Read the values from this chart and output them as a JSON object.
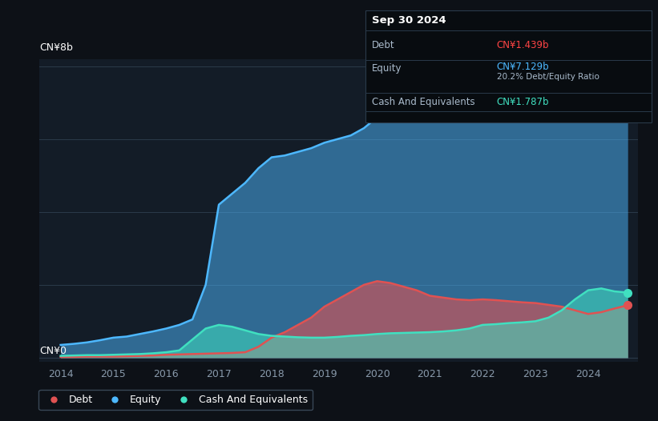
{
  "bg_color": "#0d1117",
  "plot_bg_color": "#131c27",
  "grid_color": "#2a3a4a",
  "title_label": "CN¥8b",
  "zero_label": "CN¥0",
  "xlabel_color": "#8899aa",
  "tooltip_title": "Sep 30 2024",
  "tooltip_debt_label": "Debt",
  "tooltip_debt_value": "CN¥1.439b",
  "tooltip_equity_label": "Equity",
  "tooltip_equity_value": "CN¥7.129b",
  "tooltip_ratio": "20.2% Debt/Equity Ratio",
  "tooltip_cash_label": "Cash And Equivalents",
  "tooltip_cash_value": "CN¥1.787b",
  "debt_color": "#e05252",
  "equity_color": "#4db8ff",
  "cash_color": "#40e0c0",
  "legend_border_color": "#445566",
  "years": [
    2014.0,
    2014.25,
    2014.5,
    2014.75,
    2015.0,
    2015.25,
    2015.5,
    2015.75,
    2016.0,
    2016.25,
    2016.5,
    2016.75,
    2017.0,
    2017.25,
    2017.5,
    2017.75,
    2018.0,
    2018.25,
    2018.5,
    2018.75,
    2019.0,
    2019.25,
    2019.5,
    2019.75,
    2020.0,
    2020.25,
    2020.5,
    2020.75,
    2021.0,
    2021.25,
    2021.5,
    2021.75,
    2022.0,
    2022.25,
    2022.5,
    2022.75,
    2023.0,
    2023.25,
    2023.5,
    2023.75,
    2024.0,
    2024.25,
    2024.5,
    2024.75
  ],
  "equity_values": [
    0.35,
    0.38,
    0.42,
    0.48,
    0.55,
    0.58,
    0.65,
    0.72,
    0.8,
    0.9,
    1.05,
    2.0,
    4.2,
    4.5,
    4.8,
    5.2,
    5.5,
    5.55,
    5.65,
    5.75,
    5.9,
    6.0,
    6.1,
    6.3,
    6.6,
    6.65,
    6.7,
    6.8,
    6.9,
    6.95,
    7.0,
    7.1,
    7.2,
    7.25,
    7.28,
    7.3,
    7.35,
    7.4,
    7.5,
    7.7,
    7.8,
    7.85,
    7.75,
    7.129
  ],
  "debt_values": [
    0.02,
    0.02,
    0.03,
    0.03,
    0.03,
    0.04,
    0.05,
    0.06,
    0.08,
    0.09,
    0.1,
    0.11,
    0.12,
    0.13,
    0.15,
    0.3,
    0.55,
    0.7,
    0.9,
    1.1,
    1.4,
    1.6,
    1.8,
    2.0,
    2.1,
    2.05,
    1.95,
    1.85,
    1.7,
    1.65,
    1.6,
    1.58,
    1.6,
    1.58,
    1.55,
    1.52,
    1.5,
    1.45,
    1.4,
    1.3,
    1.2,
    1.25,
    1.35,
    1.439
  ],
  "cash_values": [
    0.05,
    0.06,
    0.07,
    0.07,
    0.08,
    0.09,
    0.1,
    0.12,
    0.15,
    0.2,
    0.5,
    0.8,
    0.9,
    0.85,
    0.75,
    0.65,
    0.6,
    0.58,
    0.56,
    0.55,
    0.55,
    0.57,
    0.6,
    0.62,
    0.65,
    0.67,
    0.68,
    0.69,
    0.7,
    0.72,
    0.75,
    0.8,
    0.9,
    0.92,
    0.95,
    0.97,
    1.0,
    1.1,
    1.3,
    1.6,
    1.85,
    1.9,
    1.82,
    1.787
  ],
  "xmin": 2013.6,
  "xmax": 2024.95,
  "ymin": -0.12,
  "ymax": 8.2,
  "yticks": [
    0,
    2,
    4,
    6,
    8
  ],
  "xtick_years": [
    2014,
    2015,
    2016,
    2017,
    2018,
    2019,
    2020,
    2021,
    2022,
    2023,
    2024
  ]
}
